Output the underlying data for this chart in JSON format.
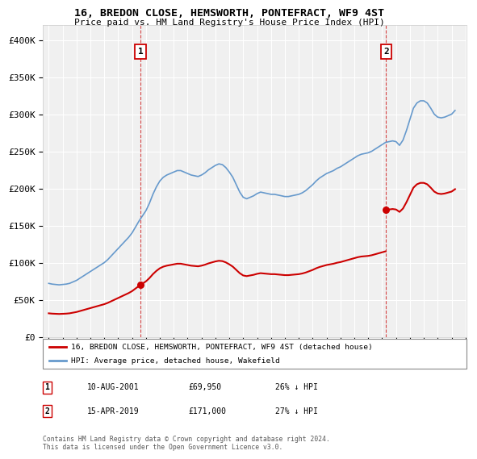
{
  "title": "16, BREDON CLOSE, HEMSWORTH, PONTEFRACT, WF9 4ST",
  "subtitle": "Price paid vs. HM Land Registry's House Price Index (HPI)",
  "red_label": "16, BREDON CLOSE, HEMSWORTH, PONTEFRACT, WF9 4ST (detached house)",
  "blue_label": "HPI: Average price, detached house, Wakefield",
  "annotation1": {
    "num": "1",
    "date": "10-AUG-2001",
    "price": "£69,950",
    "pct": "26% ↓ HPI"
  },
  "annotation2": {
    "num": "2",
    "date": "15-APR-2019",
    "price": "£171,000",
    "pct": "27% ↓ HPI"
  },
  "footer": "Contains HM Land Registry data © Crown copyright and database right 2024.\nThis data is licensed under the Open Government Licence v3.0.",
  "ylim": [
    0,
    420000
  ],
  "yticks": [
    0,
    50000,
    100000,
    150000,
    200000,
    250000,
    300000,
    350000,
    400000
  ],
  "ytick_labels": [
    "£0",
    "£50K",
    "£100K",
    "£150K",
    "£200K",
    "£250K",
    "£300K",
    "£350K",
    "£400K"
  ],
  "background_color": "#ffffff",
  "plot_bg_color": "#f0f0f0",
  "red_color": "#cc0000",
  "blue_color": "#6699cc",
  "grid_color": "#ffffff",
  "hpi_x": [
    1995.0,
    1995.25,
    1995.5,
    1995.75,
    1996.0,
    1996.25,
    1996.5,
    1996.75,
    1997.0,
    1997.25,
    1997.5,
    1997.75,
    1998.0,
    1998.25,
    1998.5,
    1998.75,
    1999.0,
    1999.25,
    1999.5,
    1999.75,
    2000.0,
    2000.25,
    2000.5,
    2000.75,
    2001.0,
    2001.25,
    2001.5,
    2001.75,
    2002.0,
    2002.25,
    2002.5,
    2002.75,
    2003.0,
    2003.25,
    2003.5,
    2003.75,
    2004.0,
    2004.25,
    2004.5,
    2004.75,
    2005.0,
    2005.25,
    2005.5,
    2005.75,
    2006.0,
    2006.25,
    2006.5,
    2006.75,
    2007.0,
    2007.25,
    2007.5,
    2007.75,
    2008.0,
    2008.25,
    2008.5,
    2008.75,
    2009.0,
    2009.25,
    2009.5,
    2009.75,
    2010.0,
    2010.25,
    2010.5,
    2010.75,
    2011.0,
    2011.25,
    2011.5,
    2011.75,
    2012.0,
    2012.25,
    2012.5,
    2012.75,
    2013.0,
    2013.25,
    2013.5,
    2013.75,
    2014.0,
    2014.25,
    2014.5,
    2014.75,
    2015.0,
    2015.25,
    2015.5,
    2015.75,
    2016.0,
    2016.25,
    2016.5,
    2016.75,
    2017.0,
    2017.25,
    2017.5,
    2017.75,
    2018.0,
    2018.25,
    2018.5,
    2018.75,
    2019.0,
    2019.25,
    2019.5,
    2019.75,
    2020.0,
    2020.25,
    2020.5,
    2020.75,
    2021.0,
    2021.25,
    2021.5,
    2021.75,
    2022.0,
    2022.25,
    2022.5,
    2022.75,
    2023.0,
    2023.25,
    2023.5,
    2023.75,
    2024.0,
    2024.25
  ],
  "hpi_y": [
    72000,
    71000,
    70500,
    70000,
    70500,
    71000,
    72000,
    74000,
    76000,
    79000,
    82000,
    85000,
    88000,
    91000,
    94000,
    97000,
    100000,
    104000,
    109000,
    114000,
    119000,
    124000,
    129000,
    134000,
    140000,
    148000,
    156000,
    163000,
    170000,
    180000,
    192000,
    202000,
    210000,
    215000,
    218000,
    220000,
    222000,
    224000,
    224000,
    222000,
    220000,
    218000,
    217000,
    216000,
    218000,
    221000,
    225000,
    228000,
    231000,
    233000,
    232000,
    228000,
    222000,
    215000,
    205000,
    195000,
    188000,
    186000,
    188000,
    190000,
    193000,
    195000,
    194000,
    193000,
    192000,
    192000,
    191000,
    190000,
    189000,
    189000,
    190000,
    191000,
    192000,
    194000,
    197000,
    201000,
    205000,
    210000,
    214000,
    217000,
    220000,
    222000,
    224000,
    227000,
    229000,
    232000,
    235000,
    238000,
    241000,
    244000,
    246000,
    247000,
    248000,
    250000,
    253000,
    256000,
    259000,
    262000,
    263000,
    264000,
    263000,
    258000,
    265000,
    278000,
    293000,
    308000,
    315000,
    318000,
    318000,
    315000,
    308000,
    300000,
    296000,
    295000,
    296000,
    298000,
    300000,
    305000
  ],
  "sale1_x": 2001.61,
  "sale1_y": 69950,
  "sale2_x": 2019.29,
  "sale2_y": 171000,
  "xlim_left": 1994.6,
  "xlim_right": 2025.1,
  "xtick_start": 1995,
  "xtick_end": 2025
}
